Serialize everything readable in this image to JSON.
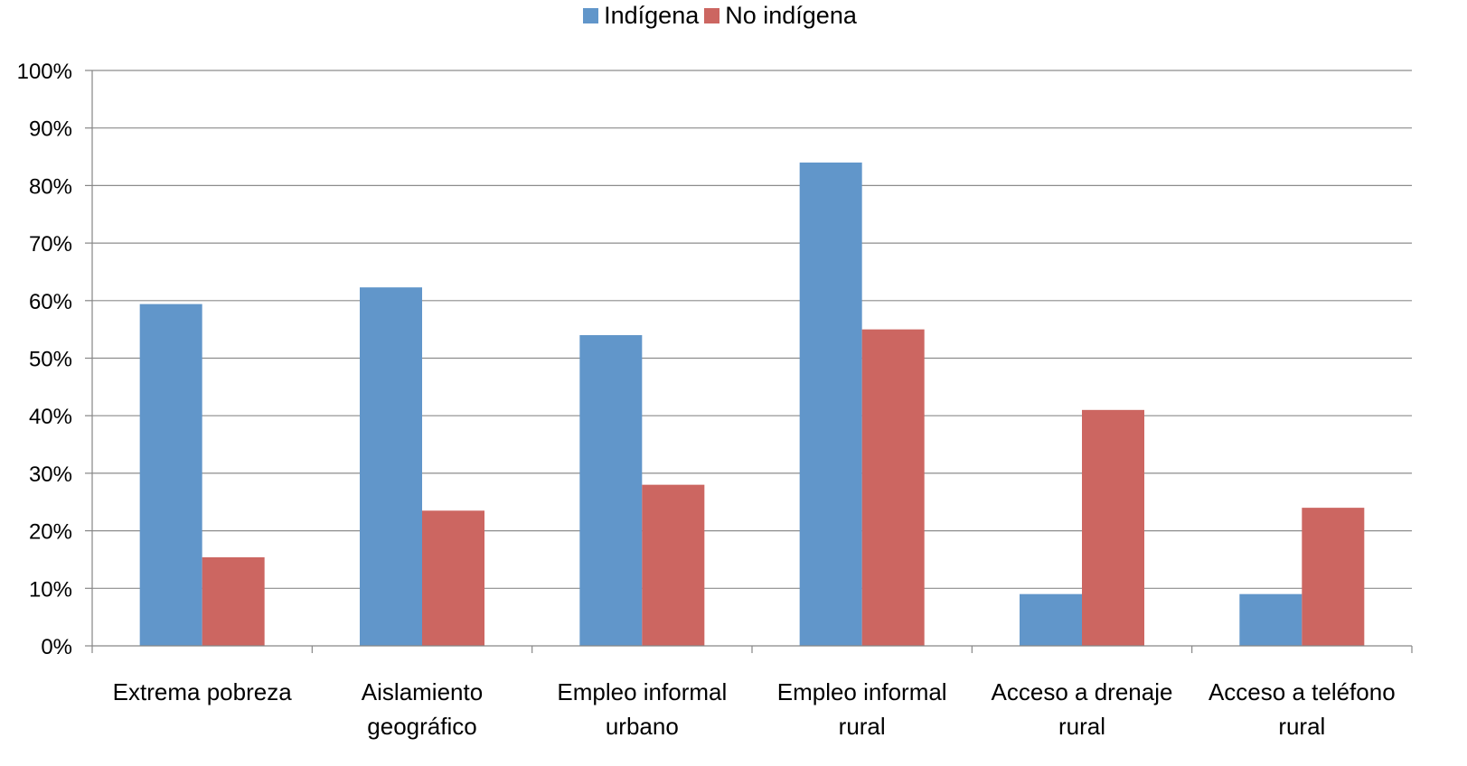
{
  "chart_data": {
    "type": "bar",
    "categories": [
      [
        "Extrema pobreza"
      ],
      [
        "Aislamiento",
        "geográfico"
      ],
      [
        "Empleo informal",
        "urbano"
      ],
      [
        "Empleo informal",
        "rural"
      ],
      [
        "Acceso a drenaje",
        "rural"
      ],
      [
        "Acceso a teléfono",
        "rural"
      ]
    ],
    "series": [
      {
        "name": "Indígena",
        "color": "#6196CA",
        "values": [
          0.594,
          0.623,
          0.54,
          0.84,
          0.09,
          0.09
        ]
      },
      {
        "name": "No indígena",
        "color": "#CC6661",
        "values": [
          0.154,
          0.235,
          0.28,
          0.55,
          0.41,
          0.24
        ]
      }
    ],
    "y_ticks": [
      "0%",
      "10%",
      "20%",
      "30%",
      "40%",
      "50%",
      "60%",
      "70%",
      "80%",
      "90%",
      "100%"
    ],
    "ylim": [
      0,
      1
    ],
    "grid": true,
    "legend_position": "top-center",
    "gridline_color": "#8c8c8c",
    "axis_color": "#868686"
  }
}
